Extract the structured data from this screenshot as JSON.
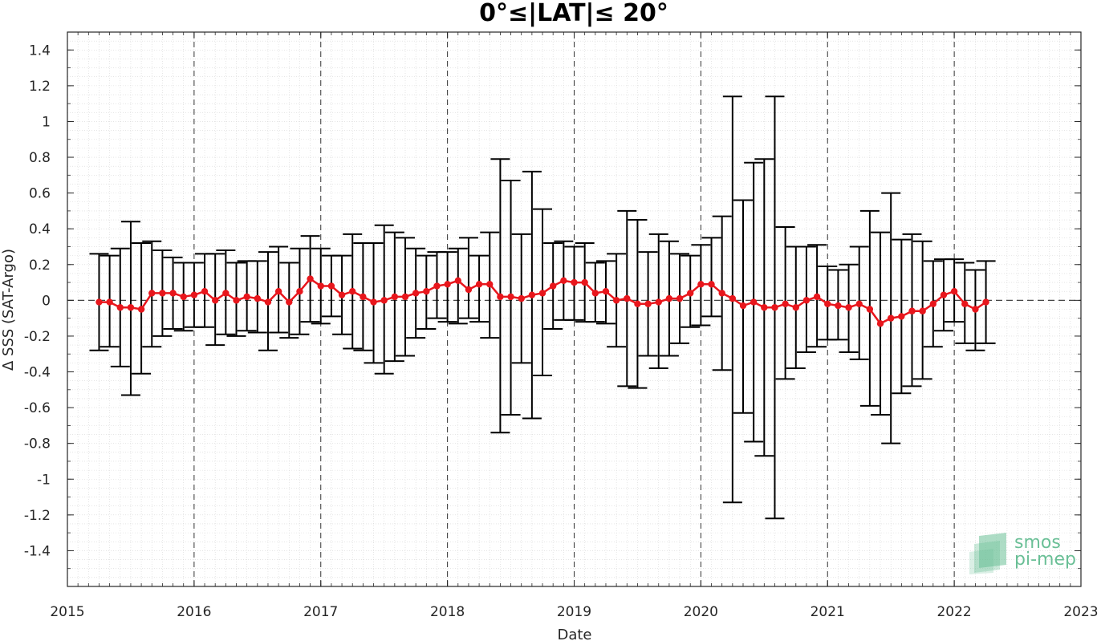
{
  "chart_data": {
    "type": "line",
    "title": "0°≤|LAT|≤ 20°",
    "xlabel": "Date",
    "ylabel": "Δ SSS (SAT-Argo)",
    "xlim": [
      "2015-01-01",
      "2023-01-01"
    ],
    "ylim": [
      -1.6,
      1.5
    ],
    "xticks": [
      "2015",
      "2016",
      "2017",
      "2018",
      "2019",
      "2020",
      "2021",
      "2022",
      "2023"
    ],
    "yticks": [
      "-1.4",
      "-1.2",
      "-1",
      "-0.8",
      "-0.6",
      "-0.4",
      "-0.2",
      "0",
      "0.2",
      "0.4",
      "0.6",
      "0.8",
      "1",
      "1.2",
      "1.4"
    ],
    "grid": "minor dotted, yearly dashed",
    "reference_line_y": 0,
    "series": [
      {
        "color": "#e8161c",
        "errorbar_color": "#000000",
        "x": [
          "2015-04",
          "2015-05",
          "2015-06",
          "2015-07",
          "2015-08",
          "2015-09",
          "2015-10",
          "2015-11",
          "2015-12",
          "2016-01",
          "2016-02",
          "2016-03",
          "2016-04",
          "2016-05",
          "2016-06",
          "2016-07",
          "2016-08",
          "2016-09",
          "2016-10",
          "2016-11",
          "2016-12",
          "2017-01",
          "2017-02",
          "2017-03",
          "2017-04",
          "2017-05",
          "2017-06",
          "2017-07",
          "2017-08",
          "2017-09",
          "2017-10",
          "2017-11",
          "2017-12",
          "2018-01",
          "2018-02",
          "2018-03",
          "2018-04",
          "2018-05",
          "2018-06",
          "2018-07",
          "2018-08",
          "2018-09",
          "2018-10",
          "2018-11",
          "2018-12",
          "2019-01",
          "2019-02",
          "2019-03",
          "2019-04",
          "2019-05",
          "2019-06",
          "2019-07",
          "2019-08",
          "2019-09",
          "2019-10",
          "2019-11",
          "2019-12",
          "2020-01",
          "2020-02",
          "2020-03",
          "2020-04",
          "2020-05",
          "2020-06",
          "2020-07",
          "2020-08",
          "2020-09",
          "2020-10",
          "2020-11",
          "2020-12",
          "2021-01",
          "2021-02",
          "2021-03",
          "2021-04",
          "2021-05",
          "2021-06",
          "2021-07",
          "2021-08",
          "2021-09",
          "2021-10",
          "2021-11",
          "2021-12",
          "2022-01",
          "2022-02",
          "2022-03",
          "2022-04"
        ],
        "values": [
          -0.01,
          -0.01,
          -0.04,
          -0.04,
          -0.05,
          0.04,
          0.04,
          0.04,
          0.02,
          0.03,
          0.05,
          0.0,
          0.04,
          0.0,
          0.02,
          0.01,
          -0.01,
          0.05,
          -0.01,
          0.05,
          0.12,
          0.08,
          0.08,
          0.03,
          0.05,
          0.02,
          -0.01,
          0.0,
          0.02,
          0.02,
          0.04,
          0.05,
          0.08,
          0.09,
          0.11,
          0.06,
          0.09,
          0.09,
          0.02,
          0.02,
          0.01,
          0.03,
          0.04,
          0.08,
          0.11,
          0.1,
          0.1,
          0.04,
          0.05,
          0.0,
          0.01,
          -0.02,
          -0.02,
          -0.01,
          0.01,
          0.01,
          0.04,
          0.09,
          0.09,
          0.04,
          0.01,
          -0.03,
          -0.01,
          -0.04,
          -0.04,
          -0.02,
          -0.04,
          0.0,
          0.02,
          -0.02,
          -0.03,
          -0.04,
          -0.02,
          -0.05,
          -0.13,
          -0.1,
          -0.09,
          -0.06,
          -0.06,
          -0.02,
          0.03,
          0.05,
          -0.02,
          -0.05,
          -0.01
        ],
        "upper": [
          0.26,
          0.25,
          0.29,
          0.44,
          0.32,
          0.33,
          0.28,
          0.24,
          0.21,
          0.21,
          0.26,
          0.26,
          0.28,
          0.21,
          0.22,
          0.22,
          0.27,
          0.3,
          0.21,
          0.29,
          0.36,
          0.29,
          0.25,
          0.25,
          0.37,
          0.32,
          0.32,
          0.42,
          0.38,
          0.35,
          0.29,
          0.25,
          0.27,
          0.27,
          0.29,
          0.35,
          0.25,
          0.38,
          0.79,
          0.67,
          0.37,
          0.72,
          0.51,
          0.32,
          0.33,
          0.3,
          0.32,
          0.21,
          0.22,
          0.26,
          0.5,
          0.45,
          0.27,
          0.37,
          0.33,
          0.26,
          0.25,
          0.31,
          0.35,
          0.47,
          1.14,
          0.56,
          0.77,
          0.79,
          1.14,
          0.41,
          0.3,
          0.3,
          0.31,
          0.19,
          0.17,
          0.2,
          0.3,
          0.5,
          0.38,
          0.6,
          0.34,
          0.37,
          0.33,
          0.22,
          0.23,
          0.23,
          0.21,
          0.17,
          0.22
        ],
        "lower": [
          -0.28,
          -0.26,
          -0.37,
          -0.53,
          -0.41,
          -0.26,
          -0.2,
          -0.16,
          -0.17,
          -0.15,
          -0.15,
          -0.25,
          -0.19,
          -0.2,
          -0.17,
          -0.18,
          -0.28,
          -0.18,
          -0.21,
          -0.19,
          -0.12,
          -0.13,
          -0.09,
          -0.19,
          -0.27,
          -0.28,
          -0.35,
          -0.41,
          -0.34,
          -0.31,
          -0.21,
          -0.16,
          -0.1,
          -0.12,
          -0.13,
          -0.1,
          -0.12,
          -0.21,
          -0.74,
          -0.64,
          -0.35,
          -0.66,
          -0.42,
          -0.16,
          -0.11,
          -0.11,
          -0.12,
          -0.12,
          -0.13,
          -0.26,
          -0.48,
          -0.49,
          -0.31,
          -0.38,
          -0.31,
          -0.24,
          -0.15,
          -0.14,
          -0.09,
          -0.39,
          -1.13,
          -0.63,
          -0.79,
          -0.87,
          -1.22,
          -0.44,
          -0.38,
          -0.29,
          -0.26,
          -0.22,
          -0.22,
          -0.29,
          -0.33,
          -0.59,
          -0.64,
          -0.8,
          -0.52,
          -0.48,
          -0.44,
          -0.26,
          -0.17,
          -0.12,
          -0.24,
          -0.28,
          -0.24
        ]
      }
    ]
  },
  "logo": {
    "line1": "smos",
    "line2": "pi-mep",
    "color": "#6abf96"
  }
}
